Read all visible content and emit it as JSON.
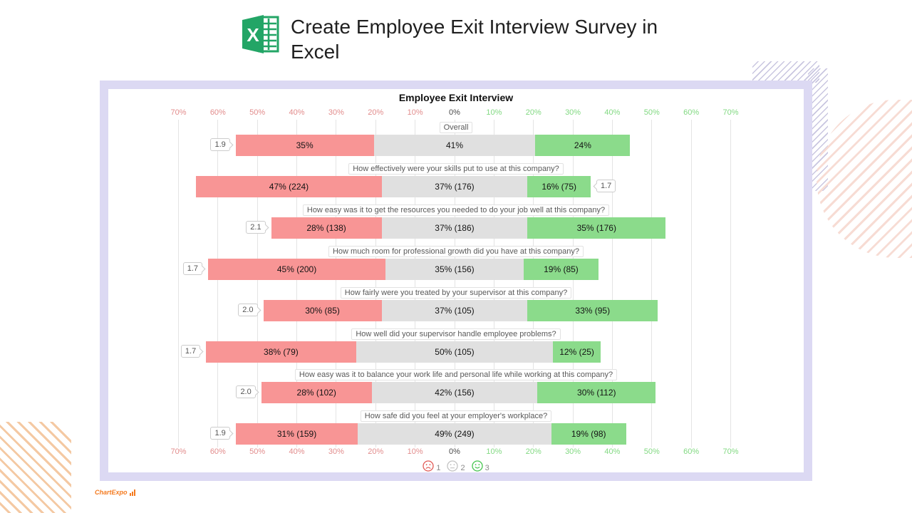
{
  "page": {
    "header": {
      "title": "Create Employee Exit Interview Survey in Excel"
    },
    "watermark": "ChartExpo"
  },
  "chart_data": {
    "type": "bar",
    "variant": "diverging-stacked-likert",
    "title": "Employee Exit Interview",
    "x_axis_unit": "%",
    "axis": {
      "ticks_percent": [
        -70,
        -60,
        -50,
        -40,
        -30,
        -20,
        -10,
        0,
        10,
        20,
        30,
        40,
        50,
        60,
        70
      ],
      "negative_color": "#e28c8c",
      "zero_color": "#4a4a4a",
      "positive_color": "#82d982",
      "grid": true,
      "mirrored_top_bottom": true
    },
    "series_colors": {
      "negative": "#f89595",
      "neutral": "#e0e0e0",
      "positive": "#8bdb8b"
    },
    "legend": [
      {
        "label": "1",
        "face": "sad",
        "color": "#e25a55"
      },
      {
        "label": "2",
        "face": "neutral",
        "color": "#c2c2c2"
      },
      {
        "label": "3",
        "face": "happy",
        "color": "#44c54e"
      }
    ],
    "rows": [
      {
        "question": "Overall",
        "score": "1.9",
        "score_side": "left",
        "negative": {
          "pct": 35,
          "label": "35%"
        },
        "neutral": {
          "pct": 41,
          "label": "41%"
        },
        "positive": {
          "pct": 24,
          "label": "24%"
        }
      },
      {
        "question": "How effectively were your skills put to use at this company?",
        "score": "1.7",
        "score_side": "right",
        "negative": {
          "pct": 47,
          "label": "47% (224)"
        },
        "neutral": {
          "pct": 37,
          "label": "37% (176)"
        },
        "positive": {
          "pct": 16,
          "label": "16% (75)"
        }
      },
      {
        "question": "How easy was it to get the resources you needed to do your job well at this company?",
        "score": "2.1",
        "score_side": "left",
        "negative": {
          "pct": 28,
          "label": "28% (138)"
        },
        "neutral": {
          "pct": 37,
          "label": "37% (186)"
        },
        "positive": {
          "pct": 35,
          "label": "35% (176)"
        }
      },
      {
        "question": "How much room for professional growth did you have at this company?",
        "score": "1.7",
        "score_side": "left",
        "negative": {
          "pct": 45,
          "label": "45% (200)"
        },
        "neutral": {
          "pct": 35,
          "label": "35% (156)"
        },
        "positive": {
          "pct": 19,
          "label": "19% (85)"
        }
      },
      {
        "question": "How fairly were you treated by your supervisor at this company?",
        "score": "2.0",
        "score_side": "left",
        "negative": {
          "pct": 30,
          "label": "30% (85)"
        },
        "neutral": {
          "pct": 37,
          "label": "37% (105)"
        },
        "positive": {
          "pct": 33,
          "label": "33% (95)"
        }
      },
      {
        "question": "How well did your supervisor handle employee problems?",
        "score": "1.7",
        "score_side": "left",
        "negative": {
          "pct": 38,
          "label": "38% (79)"
        },
        "neutral": {
          "pct": 50,
          "label": "50% (105)"
        },
        "positive": {
          "pct": 12,
          "label": "12% (25)"
        }
      },
      {
        "question": "How easy was it to balance your work life and personal life while working at this company?",
        "score": "2.0",
        "score_side": "left",
        "negative": {
          "pct": 28,
          "label": "28% (102)"
        },
        "neutral": {
          "pct": 42,
          "label": "42% (156)"
        },
        "positive": {
          "pct": 30,
          "label": "30% (112)"
        }
      },
      {
        "question": "How safe did you feel at your employer's workplace?",
        "score": "1.9",
        "score_side": "left",
        "negative": {
          "pct": 31,
          "label": "31% (159)"
        },
        "neutral": {
          "pct": 49,
          "label": "49% (249)"
        },
        "positive": {
          "pct": 19,
          "label": "19% (98)"
        }
      }
    ]
  }
}
